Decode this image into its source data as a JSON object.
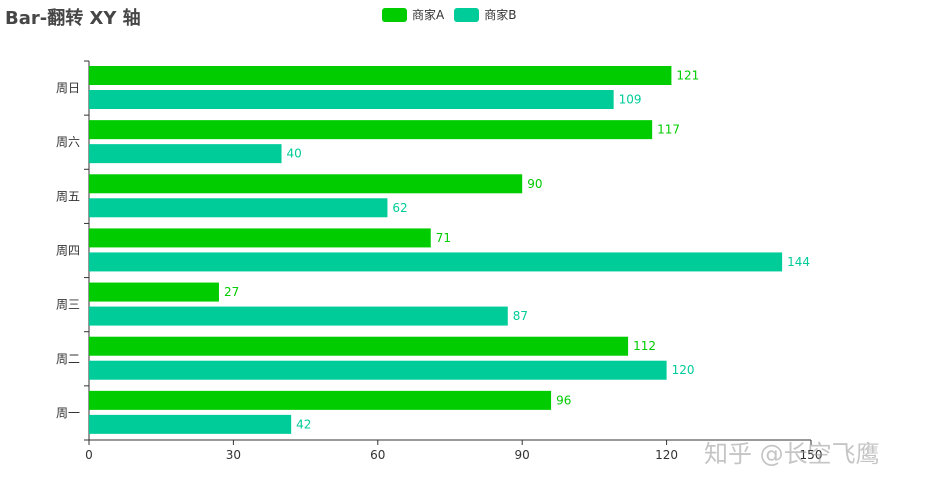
{
  "title": "Bar-翻转 XY 轴",
  "watermark": "知乎 @长空飞鹰",
  "colors": {
    "A": "#00cc00",
    "B": "#00cc99",
    "axis": "#333333"
  },
  "chart_data": {
    "type": "bar",
    "orientation": "horizontal",
    "title": "Bar-翻转 XY 轴",
    "categories": [
      "周一",
      "周二",
      "周三",
      "周四",
      "周五",
      "周六",
      "周日"
    ],
    "series": [
      {
        "name": "商家A",
        "values": [
          96,
          112,
          27,
          71,
          90,
          117,
          121
        ]
      },
      {
        "name": "商家B",
        "values": [
          42,
          120,
          87,
          144,
          62,
          40,
          109
        ]
      }
    ],
    "xlim": [
      0,
      150
    ],
    "xticks": [
      0,
      30,
      60,
      90,
      120,
      150
    ],
    "legend_position": "top-center",
    "data_labels": true
  }
}
